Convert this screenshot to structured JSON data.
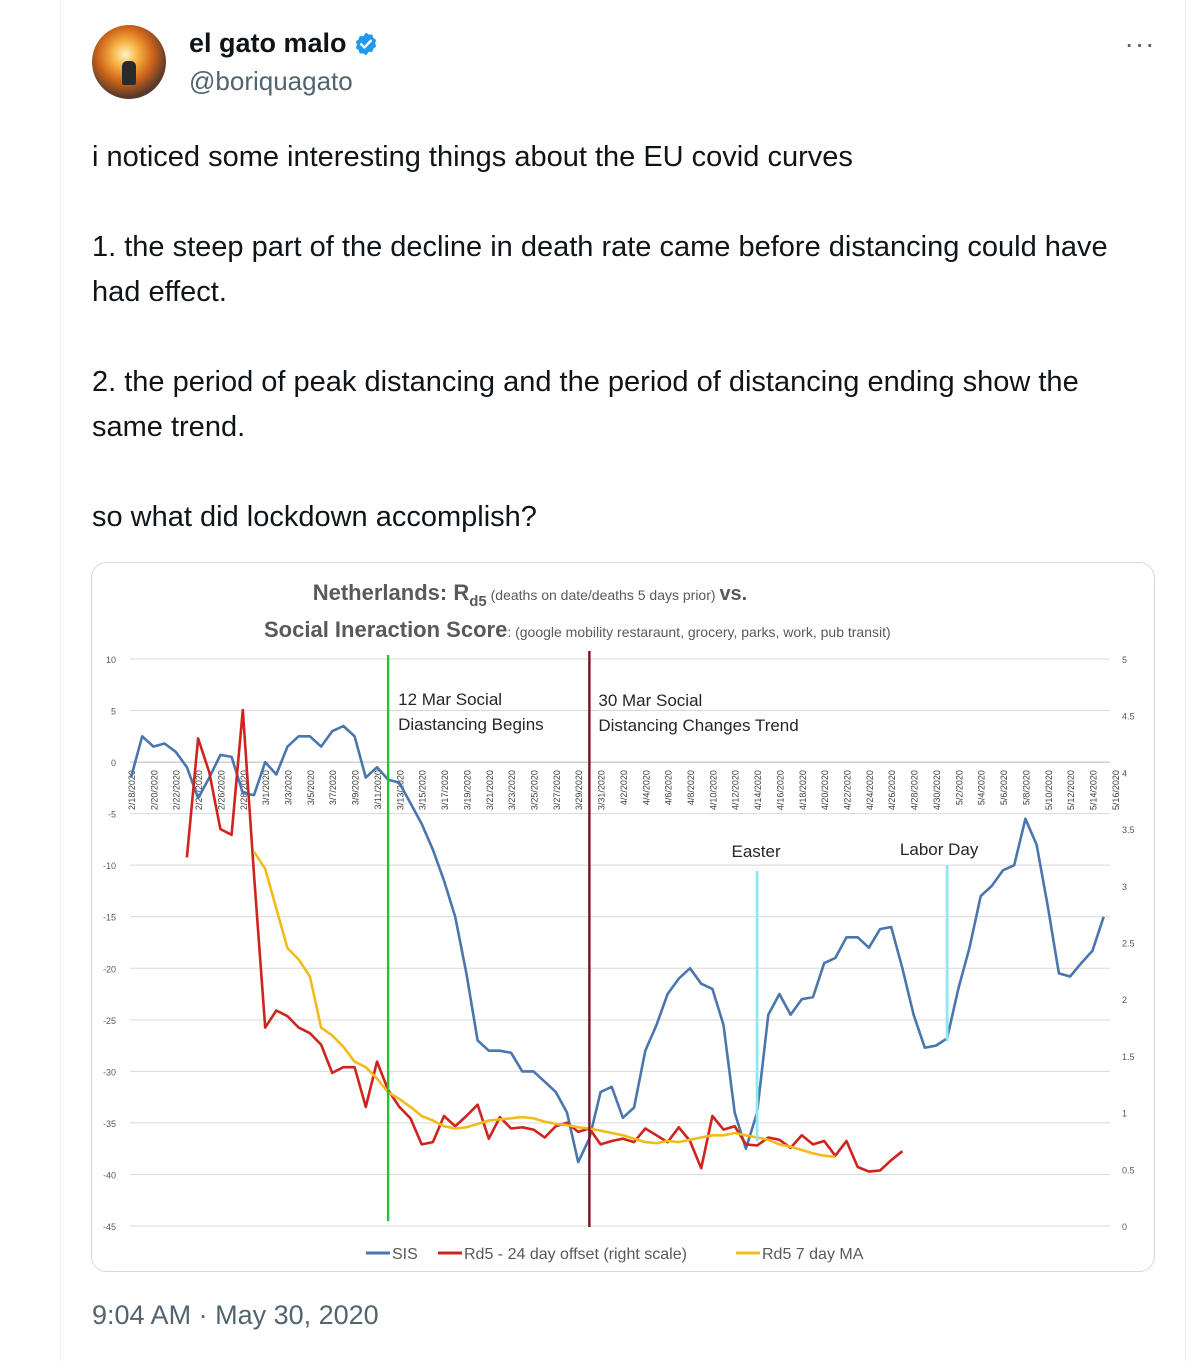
{
  "tweet": {
    "author_name": "el gato malo",
    "author_handle": "@boriquagato",
    "more_label": "···",
    "paragraphs": [
      "i noticed some interesting things about the EU covid curves",
      "1. the steep part of the decline in death rate came before distancing could have had effect.",
      "2. the period of peak distancing and the period of distancing ending show the same trend.",
      "so what did lockdown accomplish?"
    ],
    "time": "9:04 AM",
    "separator": "·",
    "date": "May 30, 2020"
  },
  "colors": {
    "sis": "#4a76ad",
    "rd5": "#d0231e",
    "ma": "#f0bb1b",
    "green_line": "#28c034",
    "maroon_line": "#7a1020",
    "cyan_line": "#8ee8f2",
    "verified": "#1d9bf0"
  },
  "chart_data": {
    "type": "line",
    "title_line1_main": "Netherlands:  R",
    "title_line1_sub": "d5",
    "title_line1_note": " (deaths on date/deaths 5 days prior) ",
    "title_line1_end": "vs.",
    "title_line2_main": "Social Ineraction Score",
    "title_line2_note": ": (google mobility restaraunt, grocery, parks, work, pub transit)",
    "left_axis": {
      "ticks": [
        "10",
        "5",
        "0",
        "-5",
        "-10",
        "-15",
        "-20",
        "-25",
        "-30",
        "-35",
        "-40",
        "-45"
      ],
      "range": [
        -45,
        10
      ]
    },
    "right_axis": {
      "ticks": [
        "5",
        "4.5",
        "4",
        "3.5",
        "3",
        "2.5",
        "2",
        "1.5",
        "1",
        "0.5",
        "0"
      ],
      "range": [
        0,
        5
      ]
    },
    "x_tick_labels": [
      "2/18/2020",
      "2/20/2020",
      "2/22/2020",
      "2/24/2020",
      "2/26/2020",
      "2/28/2020",
      "3/1/2020",
      "3/3/2020",
      "3/5/2020",
      "3/7/2020",
      "3/9/2020",
      "3/11/2020",
      "3/13/2020",
      "3/15/2020",
      "3/17/2020",
      "3/19/2020",
      "3/21/2020",
      "3/23/2020",
      "3/25/2020",
      "3/27/2020",
      "3/29/2020",
      "3/31/2020",
      "4/2/2020",
      "4/4/2020",
      "4/6/2020",
      "4/8/2020",
      "4/10/2020",
      "4/12/2020",
      "4/14/2020",
      "4/16/2020",
      "4/18/2020",
      "4/20/2020",
      "4/22/2020",
      "4/24/2020",
      "4/26/2020",
      "4/28/2020",
      "4/30/2020",
      "5/2/2020",
      "5/4/2020",
      "5/6/2020",
      "5/8/2020",
      "5/10/2020",
      "5/12/2020",
      "5/14/2020",
      "5/16/2020"
    ],
    "annotations": [
      {
        "lines": [
          "12 Mar Social",
          "Diastancing Begins"
        ],
        "day": 23,
        "color_key": "green_line"
      },
      {
        "lines": [
          "30 Mar Social",
          "Distancing Changes Trend"
        ],
        "day": 41,
        "color_key": "maroon_line"
      },
      {
        "lines": [
          "Easter"
        ],
        "day": 56,
        "color_key": "cyan_line"
      },
      {
        "lines": [
          "Labor Day"
        ],
        "day": 73,
        "color_key": "cyan_line"
      }
    ],
    "legend": [
      "SIS",
      "Rd5 - 24 day offset (right scale)",
      "Rd5 7 day MA"
    ],
    "series": [
      {
        "name": "SIS",
        "axis": "left",
        "color_key": "sis",
        "start_day": 0,
        "values": [
          -1.5,
          2.5,
          1.5,
          1.8,
          1,
          -0.5,
          -3.5,
          -1.5,
          0.7,
          0.5,
          -3,
          -3.2,
          0,
          -1.2,
          1.5,
          2.5,
          2.5,
          1.5,
          3,
          3.5,
          2.5,
          -1.5,
          -0.5,
          -1.7,
          -2,
          -4,
          -6,
          -8.5,
          -11.5,
          -15,
          -20.5,
          -27,
          -28,
          -28,
          -28.2,
          -30,
          -30,
          -31,
          -32,
          -34,
          -38.8,
          -36.5,
          -32,
          -31.5,
          -34.5,
          -33.5,
          -28,
          -25.5,
          -22.5,
          -21,
          -20,
          -21.5,
          -22,
          -25.5,
          -34,
          -37.5,
          -34,
          -24.5,
          -22.5,
          -24.5,
          -23,
          -22.8,
          -19.5,
          -19,
          -17,
          -17,
          -18,
          -16.2,
          -16,
          -20,
          -24.5,
          -27.7,
          -27.5,
          -26.8,
          -22,
          -18,
          -13,
          -12,
          -10.5,
          -10,
          -5.5,
          -8,
          -14,
          -20.5,
          -20.8,
          -19.5,
          -18.3,
          -15
        ]
      },
      {
        "name": "Rd5 - 24 day offset (right scale)",
        "axis": "right",
        "color_key": "rd5",
        "start_day": 5,
        "values": [
          3.25,
          4.3,
          4,
          3.5,
          3.45,
          4.55,
          3.1,
          1.75,
          1.9,
          1.85,
          1.75,
          1.7,
          1.6,
          1.35,
          1.4,
          1.4,
          1.05,
          1.45,
          1.2,
          1.05,
          0.95,
          0.72,
          0.74,
          0.97,
          0.88,
          0.97,
          1.07,
          0.77,
          0.96,
          0.86,
          0.87,
          0.85,
          0.78,
          0.88,
          0.91,
          0.83,
          0.86,
          0.72,
          0.75,
          0.77,
          0.74,
          0.86,
          0.8,
          0.74,
          0.87,
          0.75,
          0.51,
          0.97,
          0.85,
          0.88,
          0.72,
          0.71,
          0.78,
          0.76,
          0.69,
          0.8,
          0.72,
          0.75,
          0.62,
          0.75,
          0.52,
          0.48,
          0.49,
          0.58,
          0.66
        ]
      },
      {
        "name": "Rd5 7 day MA",
        "axis": "right",
        "color_key": "ma",
        "start_day": 11,
        "values": [
          3.3,
          3.15,
          2.8,
          2.45,
          2.35,
          2.2,
          1.75,
          1.68,
          1.58,
          1.45,
          1.4,
          1.3,
          1.18,
          1.12,
          1.05,
          0.97,
          0.93,
          0.88,
          0.86,
          0.87,
          0.9,
          0.93,
          0.94,
          0.95,
          0.96,
          0.95,
          0.92,
          0.9,
          0.89,
          0.87,
          0.86,
          0.84,
          0.82,
          0.8,
          0.77,
          0.74,
          0.73,
          0.75,
          0.74,
          0.76,
          0.78,
          0.8,
          0.8,
          0.82,
          0.8,
          0.78,
          0.76,
          0.72,
          0.7,
          0.67,
          0.64,
          0.62,
          0.61
        ]
      }
    ]
  }
}
